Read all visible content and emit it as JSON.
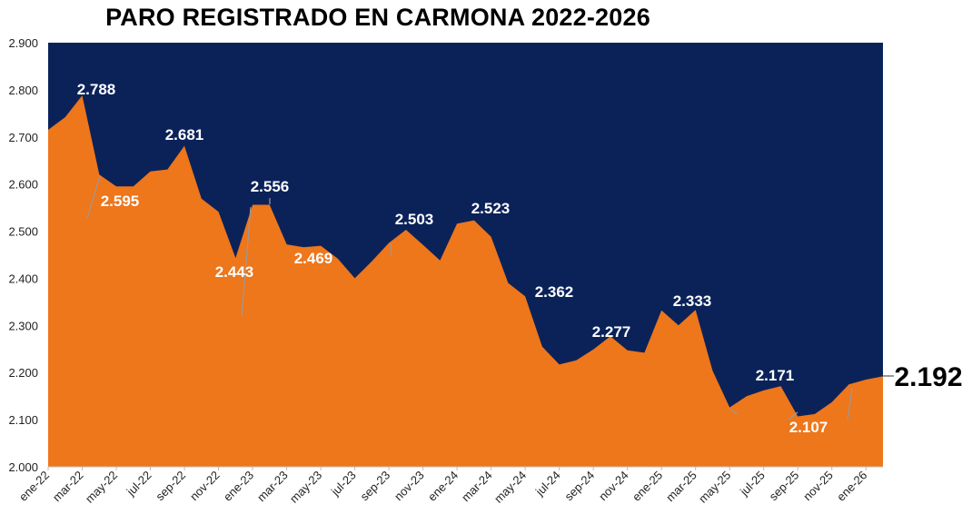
{
  "chart_data": {
    "type": "area",
    "title": "PARO REGISTRADO EN CARMONA 2022-2026",
    "xlabel": "",
    "ylabel": "",
    "ylim": [
      2000,
      2900
    ],
    "yticks": [
      "2.000",
      "2.100",
      "2.200",
      "2.300",
      "2.400",
      "2.500",
      "2.600",
      "2.700",
      "2.800",
      "2.900"
    ],
    "grid": false,
    "legend": "none",
    "colors": {
      "area": "#ee761b",
      "background": "#0b2259"
    },
    "x": [
      "ene-22",
      "feb-22",
      "mar-22",
      "abr-22",
      "may-22",
      "jun-22",
      "jul-22",
      "ago-22",
      "sep-22",
      "oct-22",
      "nov-22",
      "dic-22",
      "ene-23",
      "feb-23",
      "mar-23",
      "abr-23",
      "may-23",
      "jun-23",
      "jul-23",
      "ago-23",
      "sep-23",
      "oct-23",
      "nov-23",
      "dic-23",
      "ene-24",
      "feb-24",
      "mar-24",
      "abr-24",
      "may-24",
      "jun-24",
      "jul-24",
      "ago-24",
      "sep-24",
      "oct-24",
      "nov-24",
      "dic-24",
      "ene-25",
      "feb-25",
      "mar-25",
      "abr-25",
      "may-25",
      "jun-25",
      "jul-25",
      "ago-25",
      "sep-25",
      "oct-25",
      "nov-25",
      "dic-25",
      "ene-26",
      "feb-26"
    ],
    "xtick_labels": [
      "ene-22",
      "mar-22",
      "may-22",
      "jul-22",
      "sep-22",
      "nov-22",
      "ene-23",
      "mar-23",
      "may-23",
      "jul-23",
      "sep-23",
      "nov-23",
      "ene-24",
      "mar-24",
      "may-24",
      "jul-24",
      "sep-24",
      "nov-24",
      "ene-25",
      "mar-25",
      "may-25",
      "jul-25",
      "sep-25",
      "nov-25",
      "ene-26"
    ],
    "values": [
      2715,
      2742,
      2788,
      2620,
      2595,
      2595,
      2627,
      2631,
      2681,
      2569,
      2541,
      2443,
      2556,
      2556,
      2472,
      2466,
      2469,
      2442,
      2400,
      2436,
      2475,
      2503,
      2471,
      2438,
      2516,
      2523,
      2488,
      2390,
      2362,
      2255,
      2217,
      2226,
      2249,
      2277,
      2247,
      2242,
      2332,
      2300,
      2333,
      2204,
      2126,
      2150,
      2162,
      2171,
      2107,
      2112,
      2137,
      2175,
      2185,
      2192
    ],
    "data_labels": [
      {
        "month": "mar-22",
        "text": "2.788"
      },
      {
        "month": "may-22",
        "text": "2.595"
      },
      {
        "month": "sep-22",
        "text": "2.681"
      },
      {
        "month": "ene-23",
        "text": "2.556"
      },
      {
        "month": "dic-22",
        "text": "2.443"
      },
      {
        "month": "may-23",
        "text": "2.469"
      },
      {
        "month": "oct-23",
        "text": "2.503"
      },
      {
        "month": "feb-24",
        "text": "2.523"
      },
      {
        "month": "may-24",
        "text": "2.362"
      },
      {
        "month": "oct-24",
        "text": "2.277"
      },
      {
        "month": "mar-25",
        "text": "2.333"
      },
      {
        "month": "ago-25",
        "text": "2.171"
      },
      {
        "month": "sep-25",
        "text": "2.107"
      },
      {
        "month": "feb-26",
        "text": "2.192"
      }
    ]
  }
}
